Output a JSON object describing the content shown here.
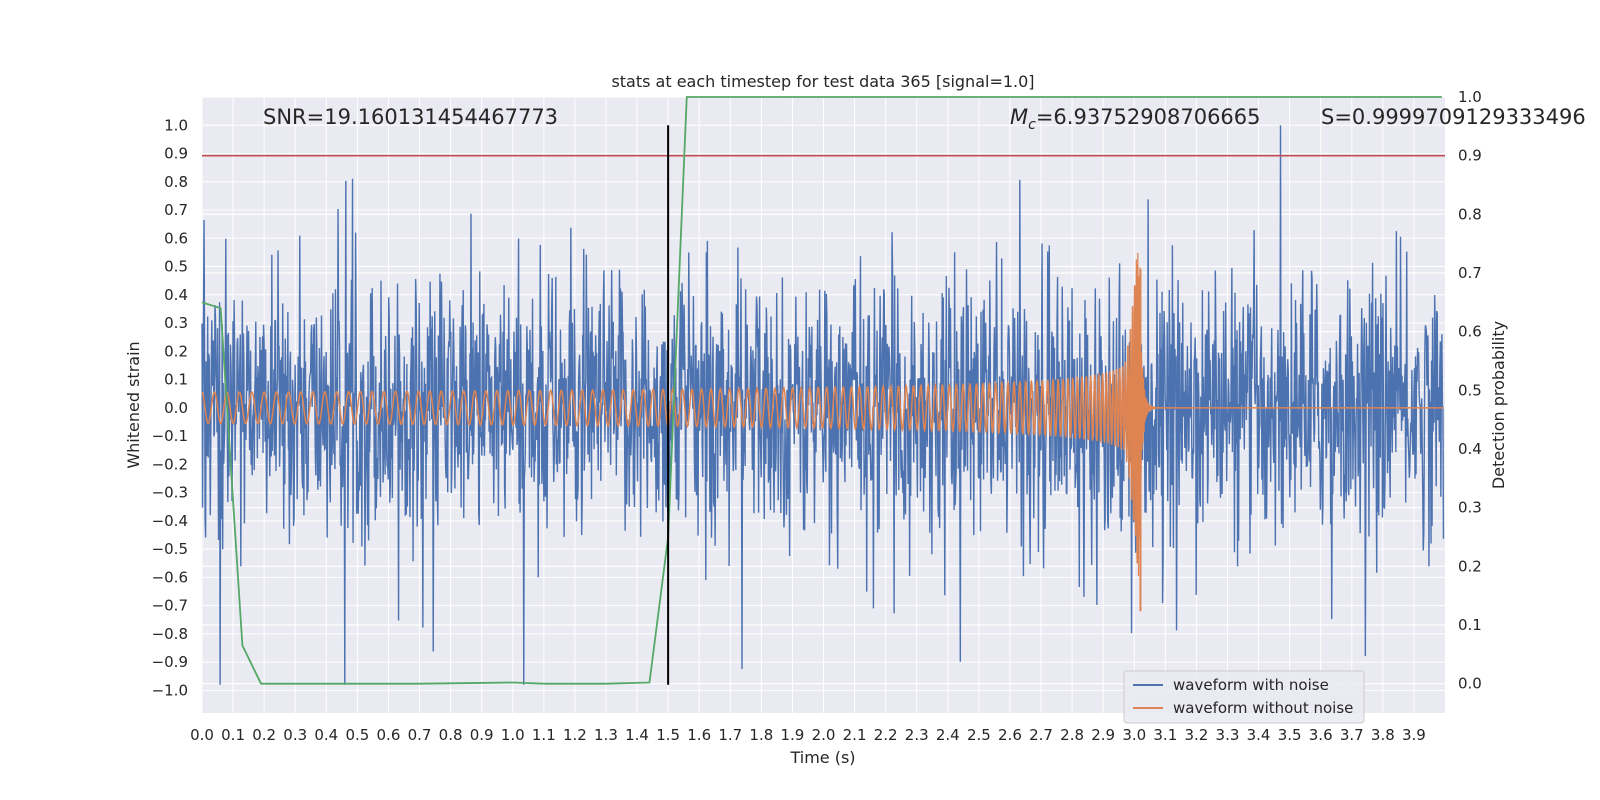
{
  "chart_data": {
    "type": "line",
    "title": "stats at each timestep for test data 365 [signal=1.0]",
    "xlabel": "Time (s)",
    "ylabel": "Whitened strain",
    "y2label": "Detection probability",
    "xlim": [
      0.0,
      4.0
    ],
    "ylim": [
      -1.08,
      1.1
    ],
    "y2lim": [
      -0.05,
      1.0
    ],
    "xticks": [
      0.0,
      0.1,
      0.2,
      0.3,
      0.4,
      0.5,
      0.6,
      0.7,
      0.8,
      0.9,
      1.0,
      1.1,
      1.2,
      1.3,
      1.4,
      1.5,
      1.6,
      1.7,
      1.8,
      1.9,
      2.0,
      2.1,
      2.2,
      2.3,
      2.4,
      2.5,
      2.6,
      2.7,
      2.8,
      2.9,
      3.0,
      3.1,
      3.2,
      3.3,
      3.4,
      3.5,
      3.6,
      3.7,
      3.8,
      3.9
    ],
    "xtick_labels": [
      "0.0",
      "0.1",
      "0.2",
      "0.3",
      "0.4",
      "0.5",
      "0.6",
      "0.7",
      "0.8",
      "0.9",
      "1.0",
      "1.1",
      "1.2",
      "1.3",
      "1.4",
      "1.5",
      "1.6",
      "1.7",
      "1.8",
      "1.9",
      "2.0",
      "2.1",
      "2.2",
      "2.3",
      "2.4",
      "2.5",
      "2.6",
      "2.7",
      "2.8",
      "2.9",
      "3.0",
      "3.1",
      "3.2",
      "3.3",
      "3.4",
      "3.5",
      "3.6",
      "3.7",
      "3.8",
      "3.9"
    ],
    "yticks": [
      -1.0,
      -0.9,
      -0.8,
      -0.7,
      -0.6,
      -0.5,
      -0.4,
      -0.3,
      -0.2,
      -0.1,
      0.0,
      0.1,
      0.2,
      0.3,
      0.4,
      0.5,
      0.6,
      0.7,
      0.8,
      0.9,
      1.0
    ],
    "ytick_labels": [
      "−1.0",
      "−0.9",
      "−0.8",
      "−0.7",
      "−0.6",
      "−0.5",
      "−0.4",
      "−0.3",
      "−0.2",
      "−0.1",
      "0.0",
      "0.1",
      "0.2",
      "0.3",
      "0.4",
      "0.5",
      "0.6",
      "0.7",
      "0.8",
      "0.9",
      "1.0"
    ],
    "y2ticks": [
      0.0,
      0.1,
      0.2,
      0.3,
      0.4,
      0.5,
      0.6,
      0.7,
      0.8,
      0.9,
      1.0
    ],
    "y2tick_labels": [
      "0.0",
      "0.1",
      "0.2",
      "0.3",
      "0.4",
      "0.5",
      "0.6",
      "0.7",
      "0.8",
      "0.9",
      "1.0"
    ],
    "grid": true,
    "legend_placement": "lower-right",
    "series": [
      {
        "name": "waveform with noise",
        "axis": "left",
        "color": "#4c72b0",
        "kind": "noisy-signal",
        "noise_amplitude_typical": 0.4,
        "peak_max": 1.0,
        "peak_min": -0.98
      },
      {
        "name": "waveform without noise",
        "axis": "left",
        "color": "#dd8452",
        "kind": "chirp",
        "amplitude_start": 0.055,
        "merger_time": 3.02,
        "peak_max": 0.49,
        "peak_min": -0.72
      },
      {
        "axis": "right",
        "color": "#55a868",
        "kind": "line",
        "x": [
          0.0,
          0.06,
          0.13,
          0.19,
          0.4,
          0.7,
          1.0,
          1.1,
          1.3,
          1.44,
          1.5,
          1.56,
          3.99
        ],
        "y": [
          0.65,
          0.64,
          0.065,
          0.0,
          0.0,
          0.0,
          0.002,
          0.0,
          0.0,
          0.002,
          0.25,
          1.0,
          1.0
        ]
      }
    ],
    "threshold_line": {
      "axis": "right",
      "value": 0.9,
      "color": "#c44e52"
    },
    "marker_line": {
      "x": 1.5,
      "y_from": -0.98,
      "y_to": 1.0,
      "color": "#000000"
    },
    "annotations": [
      {
        "text": "SNR=19.160131454467773"
      },
      {
        "text_prefix": "M",
        "text_sub": "c",
        "text_rest": "=6.93752908706665"
      },
      {
        "text": "S=0.9999709129333496"
      }
    ],
    "legend": [
      "waveform with noise",
      "waveform without noise"
    ]
  }
}
